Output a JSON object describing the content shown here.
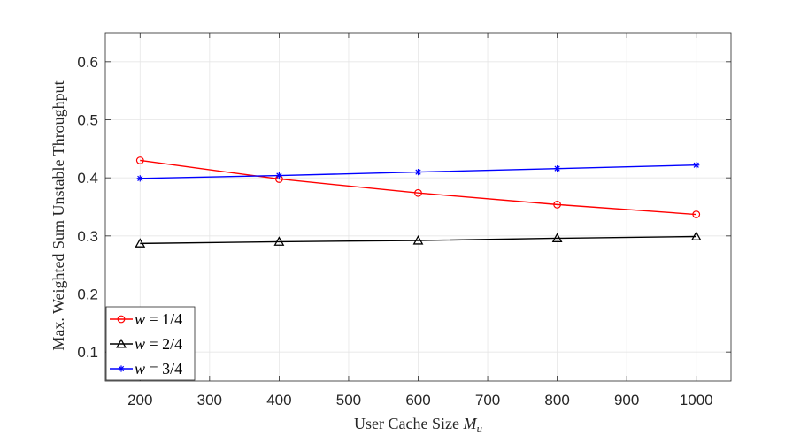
{
  "chart_data": {
    "type": "line",
    "title": "",
    "xlabel": "User Cache Size",
    "xlabel_symbol": "M",
    "xlabel_subscript": "u",
    "ylabel": "Max. Weighted Sum Unstable Throughput",
    "xlim": [
      150,
      1050
    ],
    "ylim": [
      0.05,
      0.65
    ],
    "xticks": [
      200,
      300,
      400,
      500,
      600,
      700,
      800,
      900,
      1000
    ],
    "xtick_labels": [
      "200",
      "300",
      "400",
      "500",
      "600",
      "700",
      "800",
      "900",
      "1000"
    ],
    "yticks": [
      0.1,
      0.2,
      0.3,
      0.4,
      0.5,
      0.6
    ],
    "ytick_labels": [
      "0.1",
      "0.2",
      "0.3",
      "0.4",
      "0.5",
      "0.6"
    ],
    "grid": true,
    "legend_position": "bottom-left",
    "x": [
      200,
      400,
      600,
      800,
      1000
    ],
    "series": [
      {
        "name": "w = 1/4",
        "legend_var": "w",
        "legend_rest": " = 1/4",
        "color": "#ff0000",
        "marker": "circle",
        "values": [
          0.43,
          0.398,
          0.374,
          0.354,
          0.337
        ]
      },
      {
        "name": "w = 2/4",
        "legend_var": "w",
        "legend_rest": " = 2/4",
        "color": "#000000",
        "marker": "triangle",
        "values": [
          0.287,
          0.29,
          0.292,
          0.296,
          0.299
        ]
      },
      {
        "name": "w = 3/4",
        "legend_var": "w",
        "legend_rest": " = 3/4",
        "color": "#0000ff",
        "marker": "asterisk",
        "values": [
          0.399,
          0.404,
          0.41,
          0.416,
          0.422
        ]
      }
    ]
  }
}
